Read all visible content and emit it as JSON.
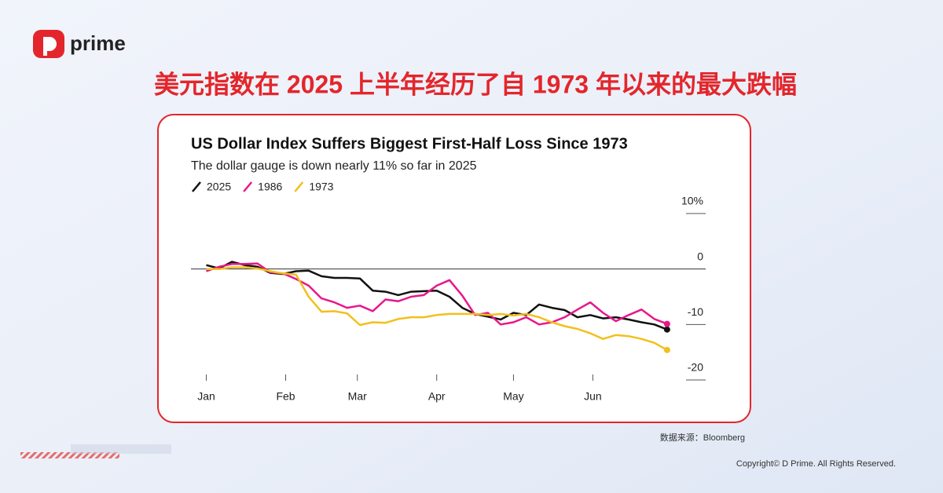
{
  "brand": "prime",
  "headline": "美元指数在 2025 上半年经历了自 1973 年以来的最大跌幅",
  "source": "数据来源：Bloomberg",
  "copyright": "Copyright© D Prime. All Rights Reserved.",
  "chart_data": {
    "type": "line",
    "title": "US Dollar Index Suffers Biggest First-Half Loss Since 1973",
    "subtitle": "The dollar gauge is down nearly 11% so far in 2025",
    "x": [
      0,
      5,
      10,
      15,
      20,
      25,
      30,
      35,
      40,
      45,
      50,
      55,
      60,
      65,
      70,
      75,
      80,
      85,
      90,
      95,
      100,
      105,
      110,
      115,
      120,
      125,
      130,
      135,
      140,
      145,
      150,
      155,
      160,
      165,
      170,
      175,
      180
    ],
    "xlim": [
      -6,
      196
    ],
    "xticks": [
      {
        "value": 0,
        "label": "Jan"
      },
      {
        "value": 31,
        "label": "Feb"
      },
      {
        "value": 59,
        "label": "Mar"
      },
      {
        "value": 90,
        "label": "Apr"
      },
      {
        "value": 120,
        "label": "May"
      },
      {
        "value": 151,
        "label": "Jun"
      }
    ],
    "ylim": [
      -20,
      10
    ],
    "yticks": [
      {
        "value": 10,
        "label": "10%"
      },
      0,
      -10,
      -20
    ],
    "series": [
      {
        "name": "2025",
        "color": "#111111",
        "values": [
          0.7,
          0.1,
          1.3,
          0.7,
          0.4,
          -0.7,
          -0.9,
          -0.4,
          -0.3,
          -1.3,
          -1.6,
          -1.6,
          -1.7,
          -3.9,
          -4.1,
          -4.7,
          -4.1,
          -4.0,
          -3.9,
          -5.0,
          -7.0,
          -8.1,
          -8.6,
          -9.1,
          -7.9,
          -8.3,
          -6.4,
          -7.0,
          -7.4,
          -8.7,
          -8.3,
          -8.9,
          -8.7,
          -9.1,
          -9.6,
          -10.0,
          -10.9
        ]
      },
      {
        "name": "1986",
        "color": "#e8178a",
        "values": [
          -0.4,
          0.4,
          0.9,
          0.9,
          1.0,
          -0.6,
          -0.8,
          -1.8,
          -3.0,
          -5.3,
          -6.0,
          -7.0,
          -6.6,
          -7.6,
          -5.5,
          -5.8,
          -5.0,
          -4.7,
          -3.0,
          -2.0,
          -4.8,
          -8.3,
          -7.9,
          -10.0,
          -9.6,
          -8.7,
          -10.0,
          -9.6,
          -8.7,
          -7.3,
          -6.0,
          -7.9,
          -9.4,
          -8.3,
          -7.3,
          -9.0,
          -9.9
        ]
      },
      {
        "name": "1973",
        "color": "#f2c01c",
        "values": [
          0,
          0,
          0.3,
          0.3,
          0.1,
          -0.4,
          -0.8,
          -1.0,
          -5.0,
          -7.7,
          -7.6,
          -8.0,
          -10.1,
          -9.6,
          -9.7,
          -9.0,
          -8.7,
          -8.7,
          -8.3,
          -8.1,
          -8.1,
          -8.1,
          -8.3,
          -8.1,
          -8.4,
          -8.1,
          -8.7,
          -9.6,
          -10.3,
          -10.8,
          -11.6,
          -12.6,
          -11.9,
          -12.1,
          -12.6,
          -13.3,
          -14.6
        ]
      }
    ]
  }
}
